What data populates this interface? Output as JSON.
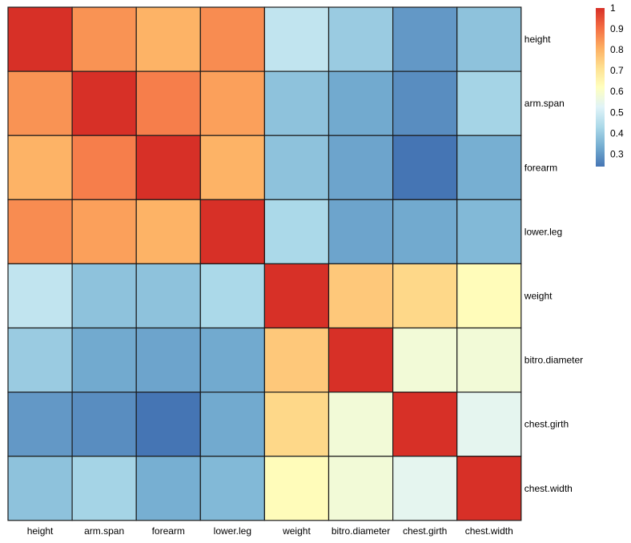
{
  "chart_data": {
    "type": "heatmap",
    "title": "",
    "xlabel": "",
    "ylabel": "",
    "row_labels": [
      "height",
      "arm.span",
      "forearm",
      "lower.leg",
      "weight",
      "bitro.diameter",
      "chest.girth",
      "chest.width"
    ],
    "col_labels": [
      "height",
      "arm.span",
      "forearm",
      "lower.leg",
      "weight",
      "bitro.diameter",
      "chest.girth",
      "chest.width"
    ],
    "values": [
      [
        1.0,
        0.85,
        0.8,
        0.86,
        0.47,
        0.4,
        0.3,
        0.38
      ],
      [
        0.85,
        1.0,
        0.88,
        0.83,
        0.38,
        0.33,
        0.28,
        0.42
      ],
      [
        0.8,
        0.88,
        1.0,
        0.8,
        0.38,
        0.32,
        0.24,
        0.34
      ],
      [
        0.86,
        0.83,
        0.8,
        1.0,
        0.43,
        0.32,
        0.33,
        0.36
      ],
      [
        0.47,
        0.38,
        0.38,
        0.43,
        1.0,
        0.76,
        0.73,
        0.63
      ],
      [
        0.4,
        0.33,
        0.32,
        0.33,
        0.76,
        1.0,
        0.58,
        0.58
      ],
      [
        0.3,
        0.28,
        0.24,
        0.33,
        0.73,
        0.58,
        1.0,
        0.54
      ],
      [
        0.38,
        0.42,
        0.34,
        0.36,
        0.63,
        0.58,
        0.54,
        1.0
      ]
    ],
    "color_scale": {
      "min": 0.24,
      "max": 1.0,
      "palette": [
        "#4575b4",
        "#74add1",
        "#abd9e9",
        "#e0f3f8",
        "#ffffbf",
        "#fee090",
        "#fdae61",
        "#f46d43",
        "#d73027"
      ]
    },
    "legend": {
      "placement": "top-right",
      "ticks": [
        "1",
        "0.9",
        "0.8",
        "0.7",
        "0.6",
        "0.5",
        "0.4",
        "0.3"
      ]
    },
    "grid": true
  }
}
